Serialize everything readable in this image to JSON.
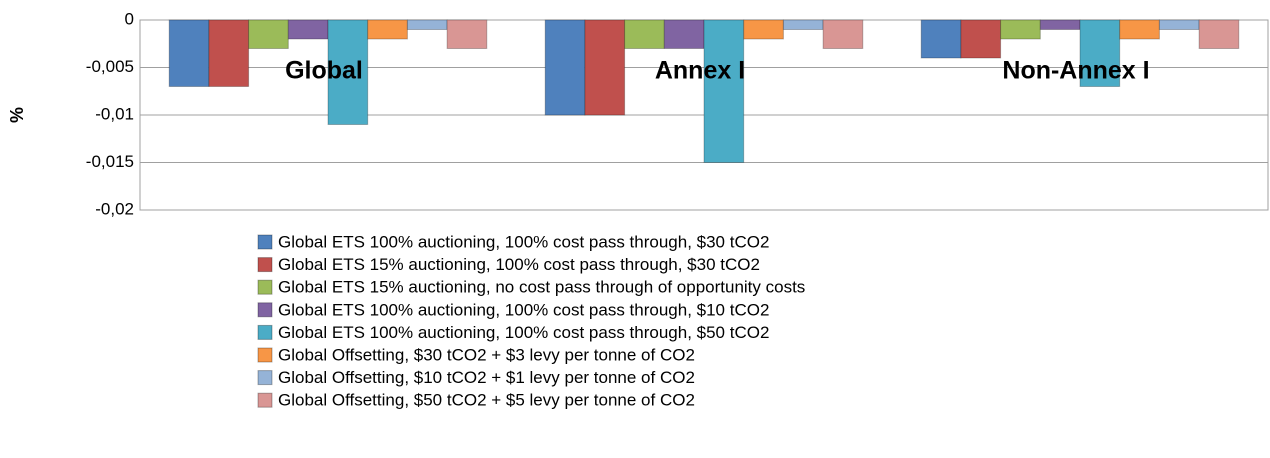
{
  "chart_data": {
    "type": "bar",
    "y_label": "%",
    "categories": [
      "Global",
      "Annex I",
      "Non-Annex I"
    ],
    "series": [
      {
        "name": "Global ETS 100% auctioning, 100% cost pass through, $30 tCO2",
        "color": "#4f81bd",
        "values": [
          -0.007,
          -0.01,
          -0.004
        ]
      },
      {
        "name": "Global ETS 15% auctioning, 100% cost pass through, $30 tCO2",
        "color": "#c0504d",
        "values": [
          -0.007,
          -0.01,
          -0.004
        ]
      },
      {
        "name": "Global ETS 15% auctioning, no cost pass through of opportunity costs",
        "color": "#9bbb59",
        "values": [
          -0.003,
          -0.003,
          -0.002
        ]
      },
      {
        "name": "Global ETS 100% auctioning, 100% cost pass through, $10 tCO2",
        "color": "#8064a2",
        "values": [
          -0.002,
          -0.003,
          -0.001
        ]
      },
      {
        "name": "Global ETS 100% auctioning, 100% cost pass through, $50 tCO2",
        "color": "#4bacc6",
        "values": [
          -0.011,
          -0.015,
          -0.007
        ]
      },
      {
        "name": "Global Offsetting, $30 tCO2 + $3 levy per tonne of CO2",
        "color": "#f79646",
        "values": [
          -0.002,
          -0.002,
          -0.002
        ]
      },
      {
        "name": "Global Offsetting, $10 tCO2 + $1 levy per tonne of CO2",
        "color": "#95b3d7",
        "values": [
          -0.001,
          -0.001,
          -0.001
        ]
      },
      {
        "name": "Global Offsetting, $50 tCO2 + $5 levy per tonne of CO2",
        "color": "#d99694",
        "values": [
          -0.003,
          -0.003,
          -0.003
        ]
      }
    ],
    "ylim": [
      -0.02,
      0
    ],
    "yticks": [
      {
        "value": -0.02,
        "label": "-0,02"
      },
      {
        "value": -0.015,
        "label": "-0,015"
      },
      {
        "value": -0.01,
        "label": "-0,01"
      },
      {
        "value": -0.005,
        "label": "-0,005"
      },
      0
    ],
    "grid": true
  }
}
